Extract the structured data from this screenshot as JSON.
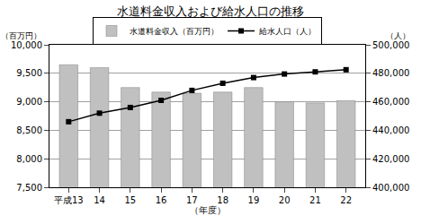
{
  "chart_data": {
    "type": "bar",
    "title": "水道料金収入および給水人口の推移",
    "xlabel": "（年度）",
    "ylabel": "（百万円）",
    "y2label": "（人）",
    "categories": [
      "平成13",
      "14",
      "15",
      "16",
      "17",
      "18",
      "19",
      "20",
      "21",
      "22"
    ],
    "series": [
      {
        "name": "水道料金収入（百万円）",
        "type": "bar",
        "color": "#c0c0c0",
        "values": [
          9650,
          9600,
          9250,
          9170,
          9150,
          9170,
          9250,
          9000,
          8980,
          9020
        ]
      },
      {
        "name": "給水人口（人）",
        "type": "line",
        "axis": "y2",
        "color": "#000000",
        "marker": "square",
        "values": [
          446000,
          452000,
          456000,
          461000,
          468000,
          473000,
          477000,
          479500,
          481000,
          482500
        ]
      }
    ],
    "ylim": [
      7500,
      10000
    ],
    "yticks": [
      {
        "value": 7500,
        "label": "7,500"
      },
      {
        "value": 8000,
        "label": "8,000"
      },
      {
        "value": 8500,
        "label": "8,500"
      },
      {
        "value": 9000,
        "label": "9,000"
      },
      {
        "value": 9500,
        "label": "9,500"
      },
      {
        "value": 10000,
        "label": "10,000"
      }
    ],
    "y2lim": [
      400000,
      500000
    ],
    "y2ticks": [
      {
        "value": 400000,
        "label": "400,000"
      },
      {
        "value": 420000,
        "label": "420,000"
      },
      {
        "value": 440000,
        "label": "440,000"
      },
      {
        "value": 460000,
        "label": "460,000"
      },
      {
        "value": 480000,
        "label": "480,000"
      },
      {
        "value": 500000,
        "label": "500,000"
      }
    ],
    "grid": true,
    "legend": "top"
  }
}
